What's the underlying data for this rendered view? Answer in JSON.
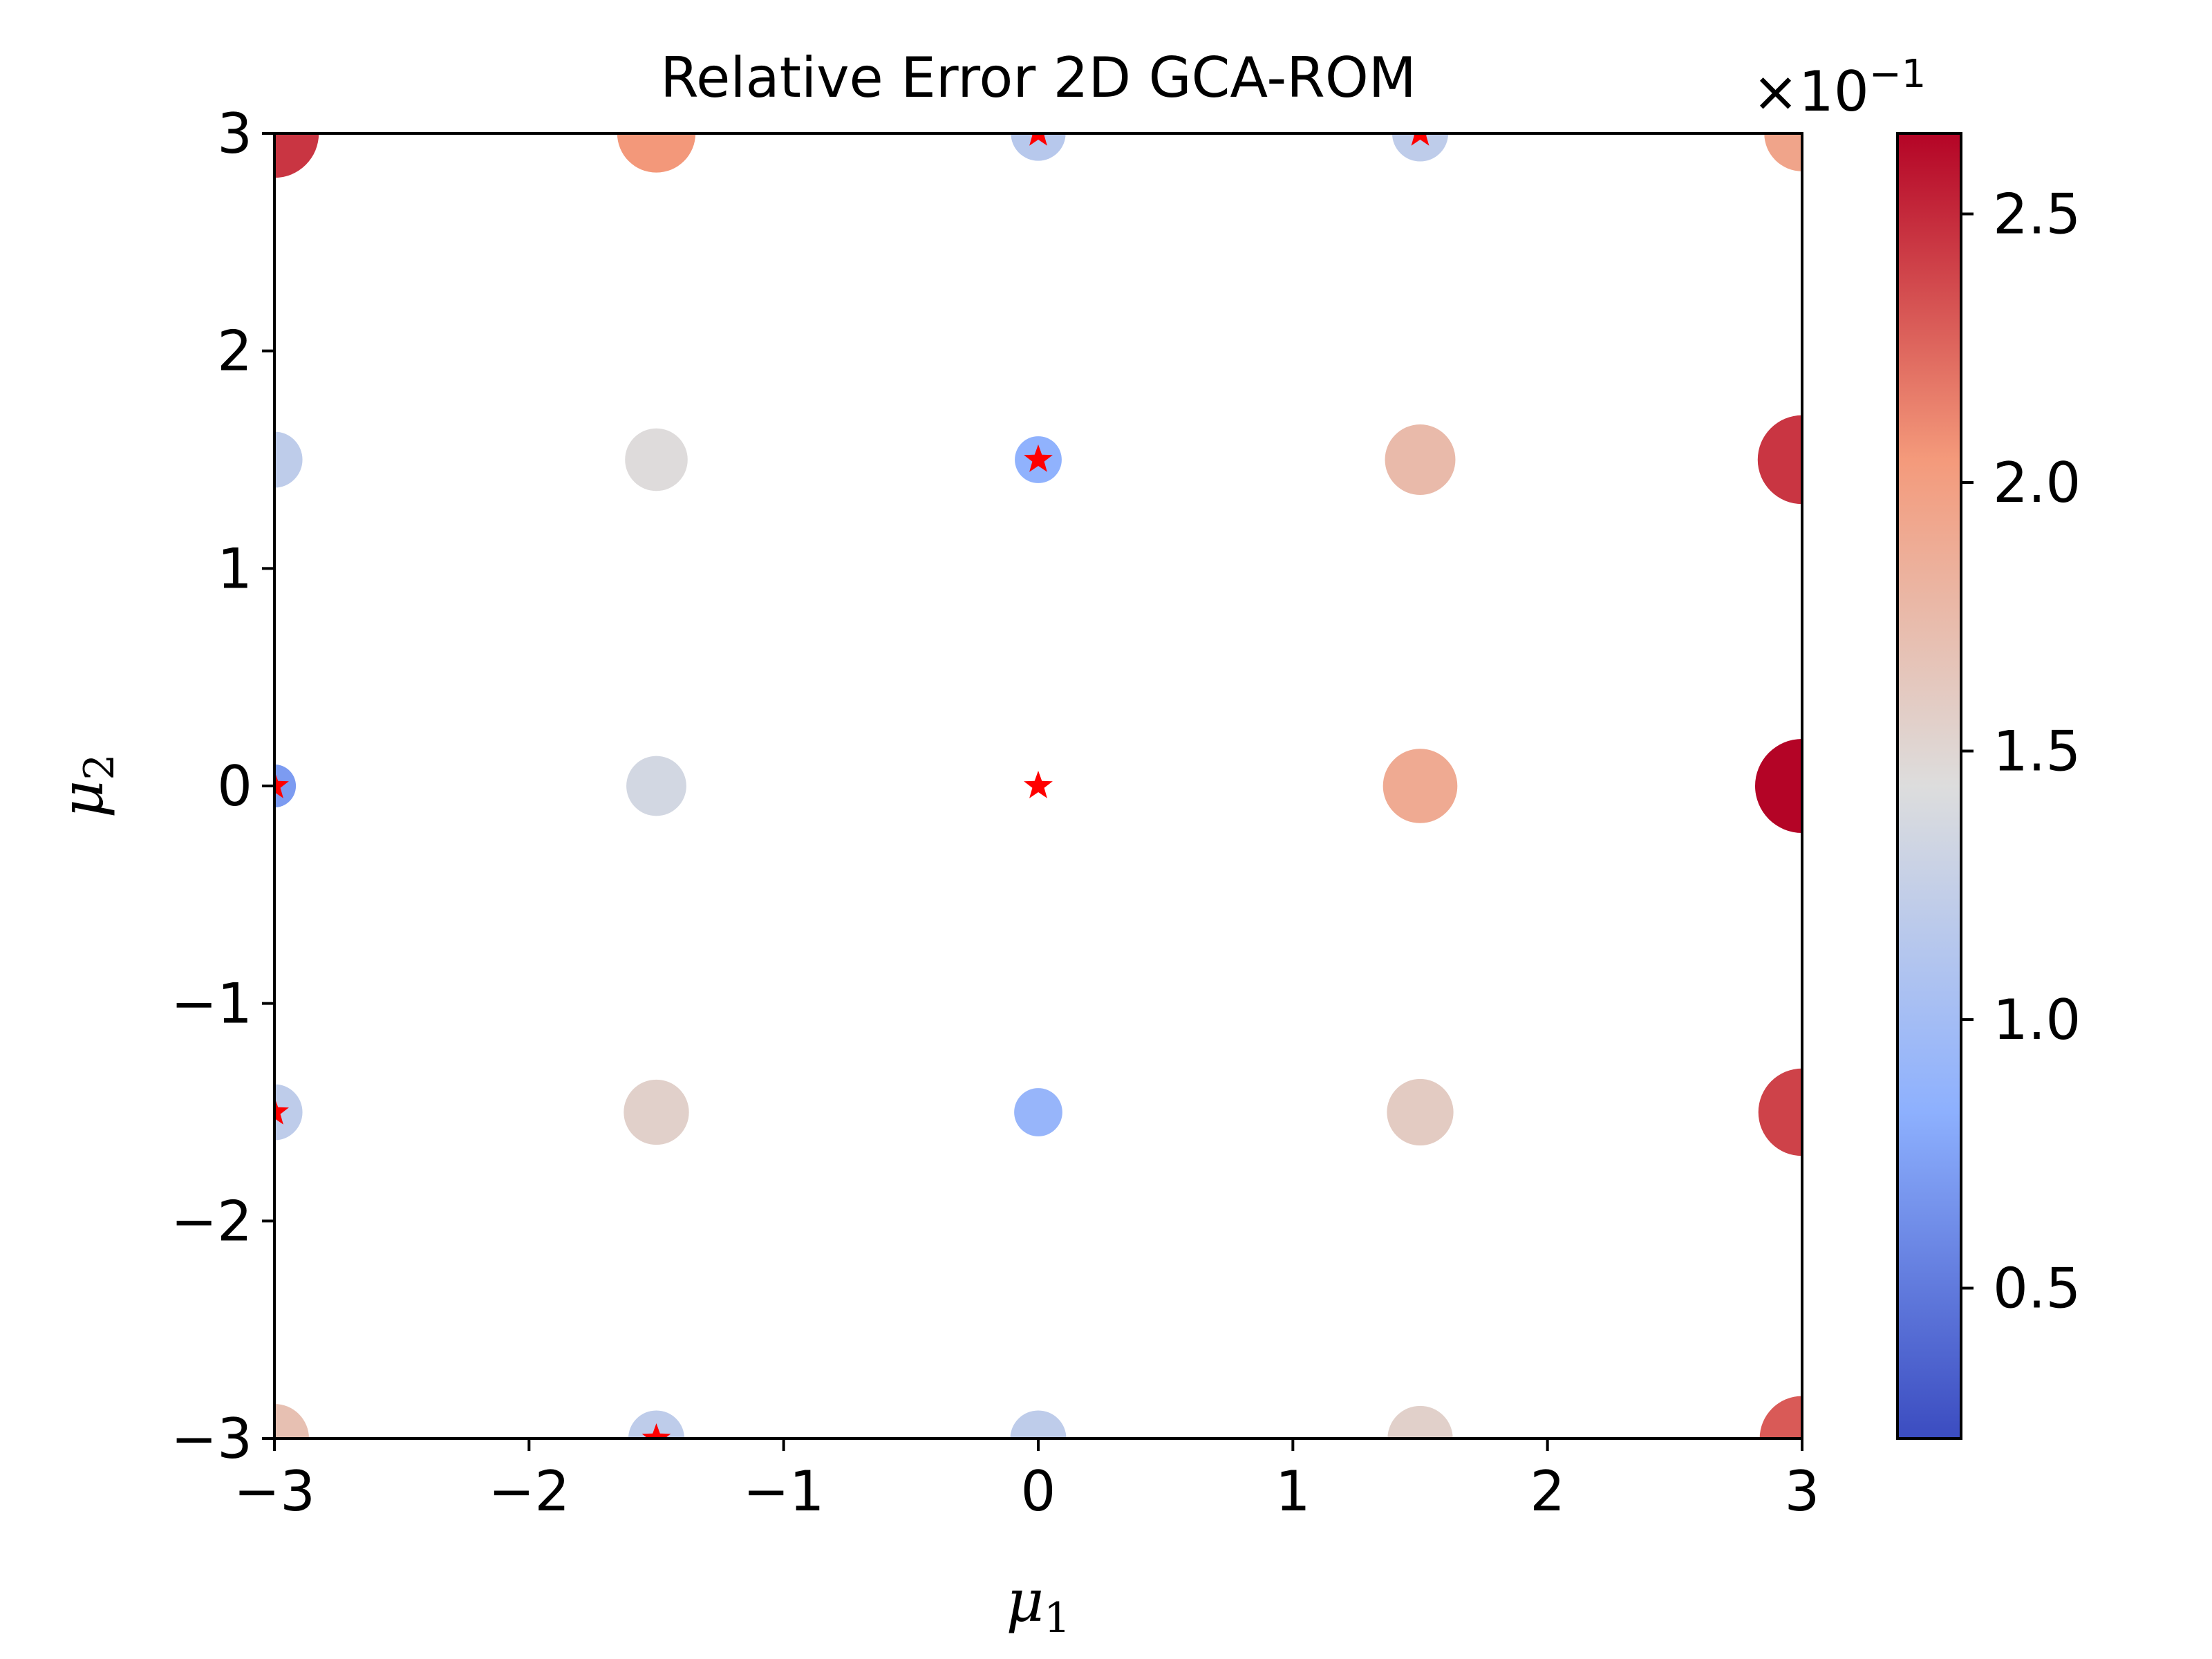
{
  "chart_data": {
    "type": "scatter",
    "title": "Relative Error 2D GCA-ROM",
    "xlabel": "μ",
    "xlabel_sub": "1",
    "ylabel": "μ",
    "ylabel_sub": "2",
    "xlim": [
      -3,
      3
    ],
    "ylim": [
      -3,
      3
    ],
    "xticks": [
      -3,
      -2,
      -1,
      0,
      1,
      2,
      3
    ],
    "yticks": [
      -3,
      -2,
      -1,
      0,
      1,
      2,
      3
    ],
    "xtick_labels": [
      "−3",
      "−2",
      "−1",
      "0",
      "1",
      "2",
      "3"
    ],
    "ytick_labels": [
      "−3",
      "−2",
      "−1",
      "0",
      "1",
      "2",
      "3"
    ],
    "grid": false,
    "colormap": "coolwarm",
    "colorbar": {
      "min": 0.22,
      "max": 2.65,
      "ticks": [
        0.5,
        1.0,
        1.5,
        2.0,
        2.5
      ],
      "tick_labels": [
        "0.5",
        "1.0",
        "1.5",
        "2.0",
        "2.5"
      ],
      "offset_text": "×10",
      "offset_exponent": "−1"
    },
    "series": [
      {
        "marker": "circle",
        "points": [
          {
            "x": -3,
            "y": 3,
            "value": 2.45
          },
          {
            "x": -1.5,
            "y": 3,
            "value": 2.05
          },
          {
            "x": 0,
            "y": 3,
            "value": 1.15
          },
          {
            "x": 1.5,
            "y": 3,
            "value": 1.2
          },
          {
            "x": 3,
            "y": 3,
            "value": 1.95
          },
          {
            "x": -3,
            "y": 1.5,
            "value": 1.2
          },
          {
            "x": -1.5,
            "y": 1.5,
            "value": 1.45
          },
          {
            "x": 0,
            "y": 1.5,
            "value": 0.85
          },
          {
            "x": 1.5,
            "y": 1.5,
            "value": 1.75
          },
          {
            "x": 3,
            "y": 1.5,
            "value": 2.45
          },
          {
            "x": -3,
            "y": 0,
            "value": 0.7
          },
          {
            "x": -1.5,
            "y": 0,
            "value": 1.35
          },
          {
            "x": 1.5,
            "y": 0,
            "value": 1.9
          },
          {
            "x": 3,
            "y": 0,
            "value": 2.65
          },
          {
            "x": -3,
            "y": -1.5,
            "value": 1.2
          },
          {
            "x": -1.5,
            "y": -1.5,
            "value": 1.55
          },
          {
            "x": 0,
            "y": -1.5,
            "value": 0.9
          },
          {
            "x": 1.5,
            "y": -1.5,
            "value": 1.6
          },
          {
            "x": 3,
            "y": -1.5,
            "value": 2.4
          },
          {
            "x": -3,
            "y": -3,
            "value": 1.7
          },
          {
            "x": -1.5,
            "y": -3,
            "value": 1.2
          },
          {
            "x": 0,
            "y": -3,
            "value": 1.2
          },
          {
            "x": 1.5,
            "y": -3,
            "value": 1.55
          },
          {
            "x": 3,
            "y": -3,
            "value": 2.3
          }
        ]
      },
      {
        "marker": "star",
        "color": "#ff0000",
        "points": [
          {
            "x": 0,
            "y": 3
          },
          {
            "x": 1.5,
            "y": 3
          },
          {
            "x": 0,
            "y": 1.5
          },
          {
            "x": -3,
            "y": 0
          },
          {
            "x": 0,
            "y": 0
          },
          {
            "x": -3,
            "y": -1.5
          },
          {
            "x": -1.5,
            "y": -3
          }
        ]
      }
    ]
  }
}
